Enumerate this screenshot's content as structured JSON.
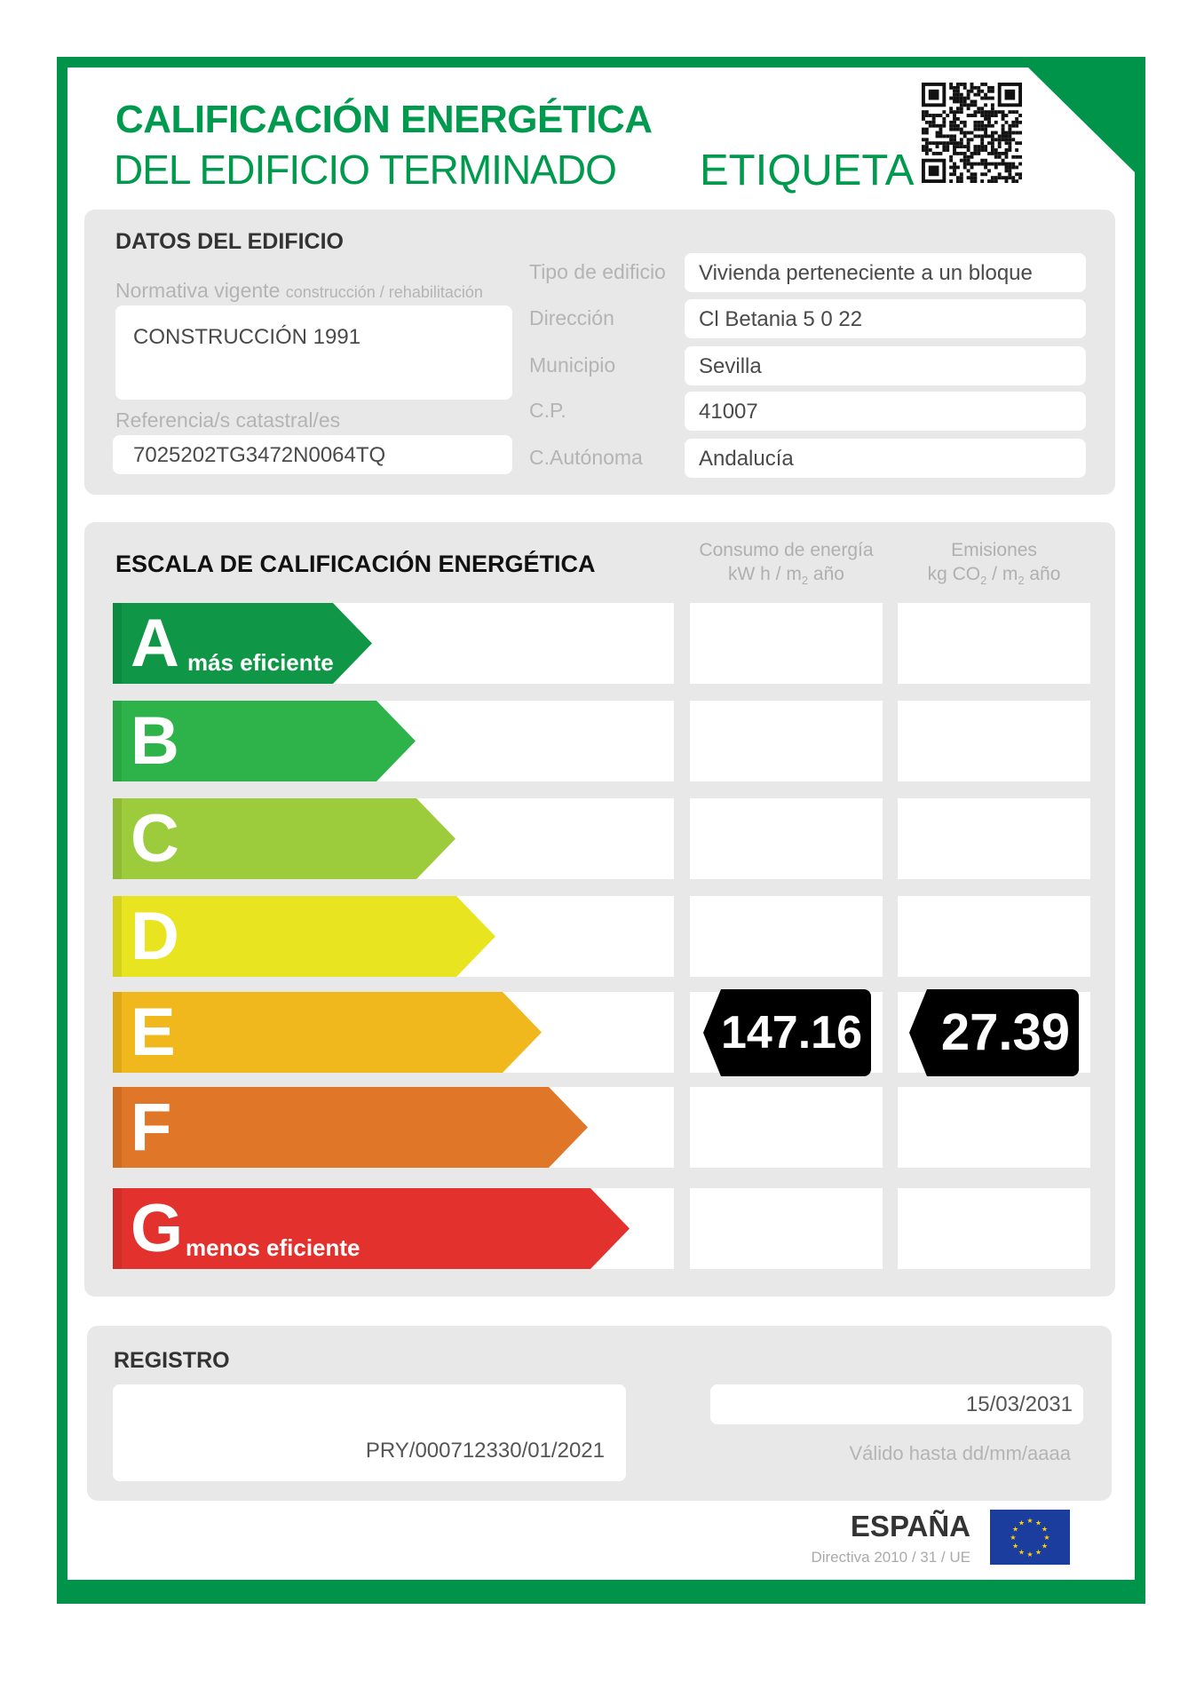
{
  "header": {
    "title_line1": "CALIFICACIÓN ENERGÉTICA",
    "title_line2": "DEL EDIFICIO TERMINADO",
    "label": "ETIQUETA",
    "brand_color": "#009a4e"
  },
  "datos": {
    "title": "DATOS DEL EDIFICIO",
    "normativa_label": "Normativa vigente",
    "normativa_sublabel": "construcción / rehabilitación",
    "normativa_value": "CONSTRUCCIÓN 1991",
    "referencia_label": "Referencia/s catastral/es",
    "referencia_value": "7025202TG3472N0064TQ",
    "fields": [
      {
        "label": "Tipo de edificio",
        "value": "Vivienda perteneciente a un bloque"
      },
      {
        "label": "Dirección",
        "value": "Cl Betania 5 0  22"
      },
      {
        "label": "Municipio",
        "value": "Sevilla"
      },
      {
        "label": "C.P.",
        "value": "41007"
      },
      {
        "label": "C.Autónoma",
        "value": "Andalucía"
      }
    ]
  },
  "escala": {
    "title": "ESCALA DE CALIFICACIÓN ENERGÉTICA",
    "col1": {
      "line1": "Consumo de energía",
      "line2a": "kW h / m",
      "line2sub": "2",
      "line2b": " año"
    },
    "col2": {
      "line1": "Emisiones",
      "line2a": "kg CO",
      "line2sub": "2",
      "line2c": " / m",
      "line2sub2": "2",
      "line2b": " año"
    },
    "classes": [
      {
        "letter": "A",
        "note": "más eficiente",
        "color": "#0f9647"
      },
      {
        "letter": "B",
        "note": "",
        "color": "#2db34a"
      },
      {
        "letter": "C",
        "note": "",
        "color": "#9ccb3b"
      },
      {
        "letter": "D",
        "note": "",
        "color": "#e8e420"
      },
      {
        "letter": "E",
        "note": "",
        "color": "#f0b81c"
      },
      {
        "letter": "F",
        "note": "",
        "color": "#e07628"
      },
      {
        "letter": "G",
        "note": "menos eficiente",
        "color": "#e3312d"
      }
    ],
    "rating_class": "E",
    "consumo": "147.16",
    "emisiones": "27.39"
  },
  "registro": {
    "title": "REGISTRO",
    "number": "PRY/000712330/01/2021",
    "valid_date": "15/03/2031",
    "valid_label": "Válido hasta dd/mm/aaaa"
  },
  "footer": {
    "country": "ESPAÑA",
    "directive": "Directiva 2010 / 31 / UE"
  }
}
